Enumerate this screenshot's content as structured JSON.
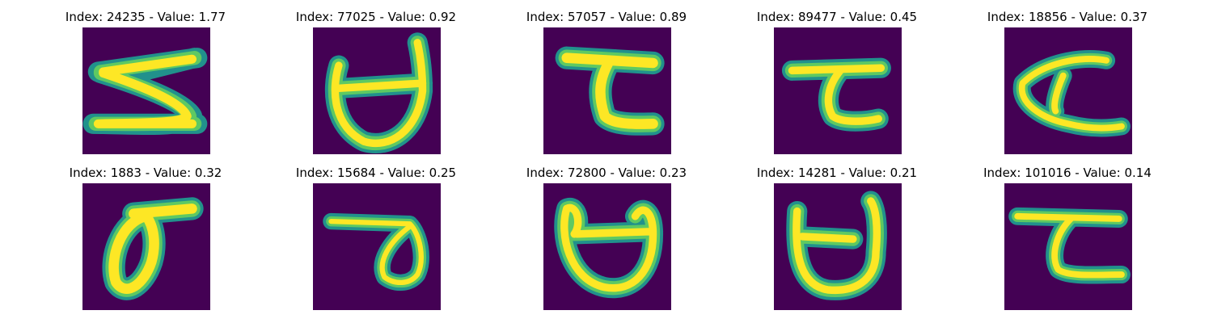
{
  "colors": {
    "background": "#440154",
    "stroke_edge": "#21918c",
    "stroke_mid": "#5ec962",
    "stroke_core": "#fde725"
  },
  "panels": [
    {
      "title": "Index: 24235 - Value: 1.77"
    },
    {
      "title": "Index: 77025 - Value: 0.92"
    },
    {
      "title": "Index: 57057 - Value: 0.89"
    },
    {
      "title": "Index: 89477 - Value: 0.45"
    },
    {
      "title": "Index: 18856 - Value: 0.37"
    },
    {
      "title": "Index: 1883 - Value: 0.32"
    },
    {
      "title": "Index: 15684 - Value: 0.25"
    },
    {
      "title": "Index: 72800 - Value: 0.23"
    },
    {
      "title": "Index: 14281 - Value: 0.21"
    },
    {
      "title": "Index: 101016 - Value: 0.14"
    }
  ]
}
